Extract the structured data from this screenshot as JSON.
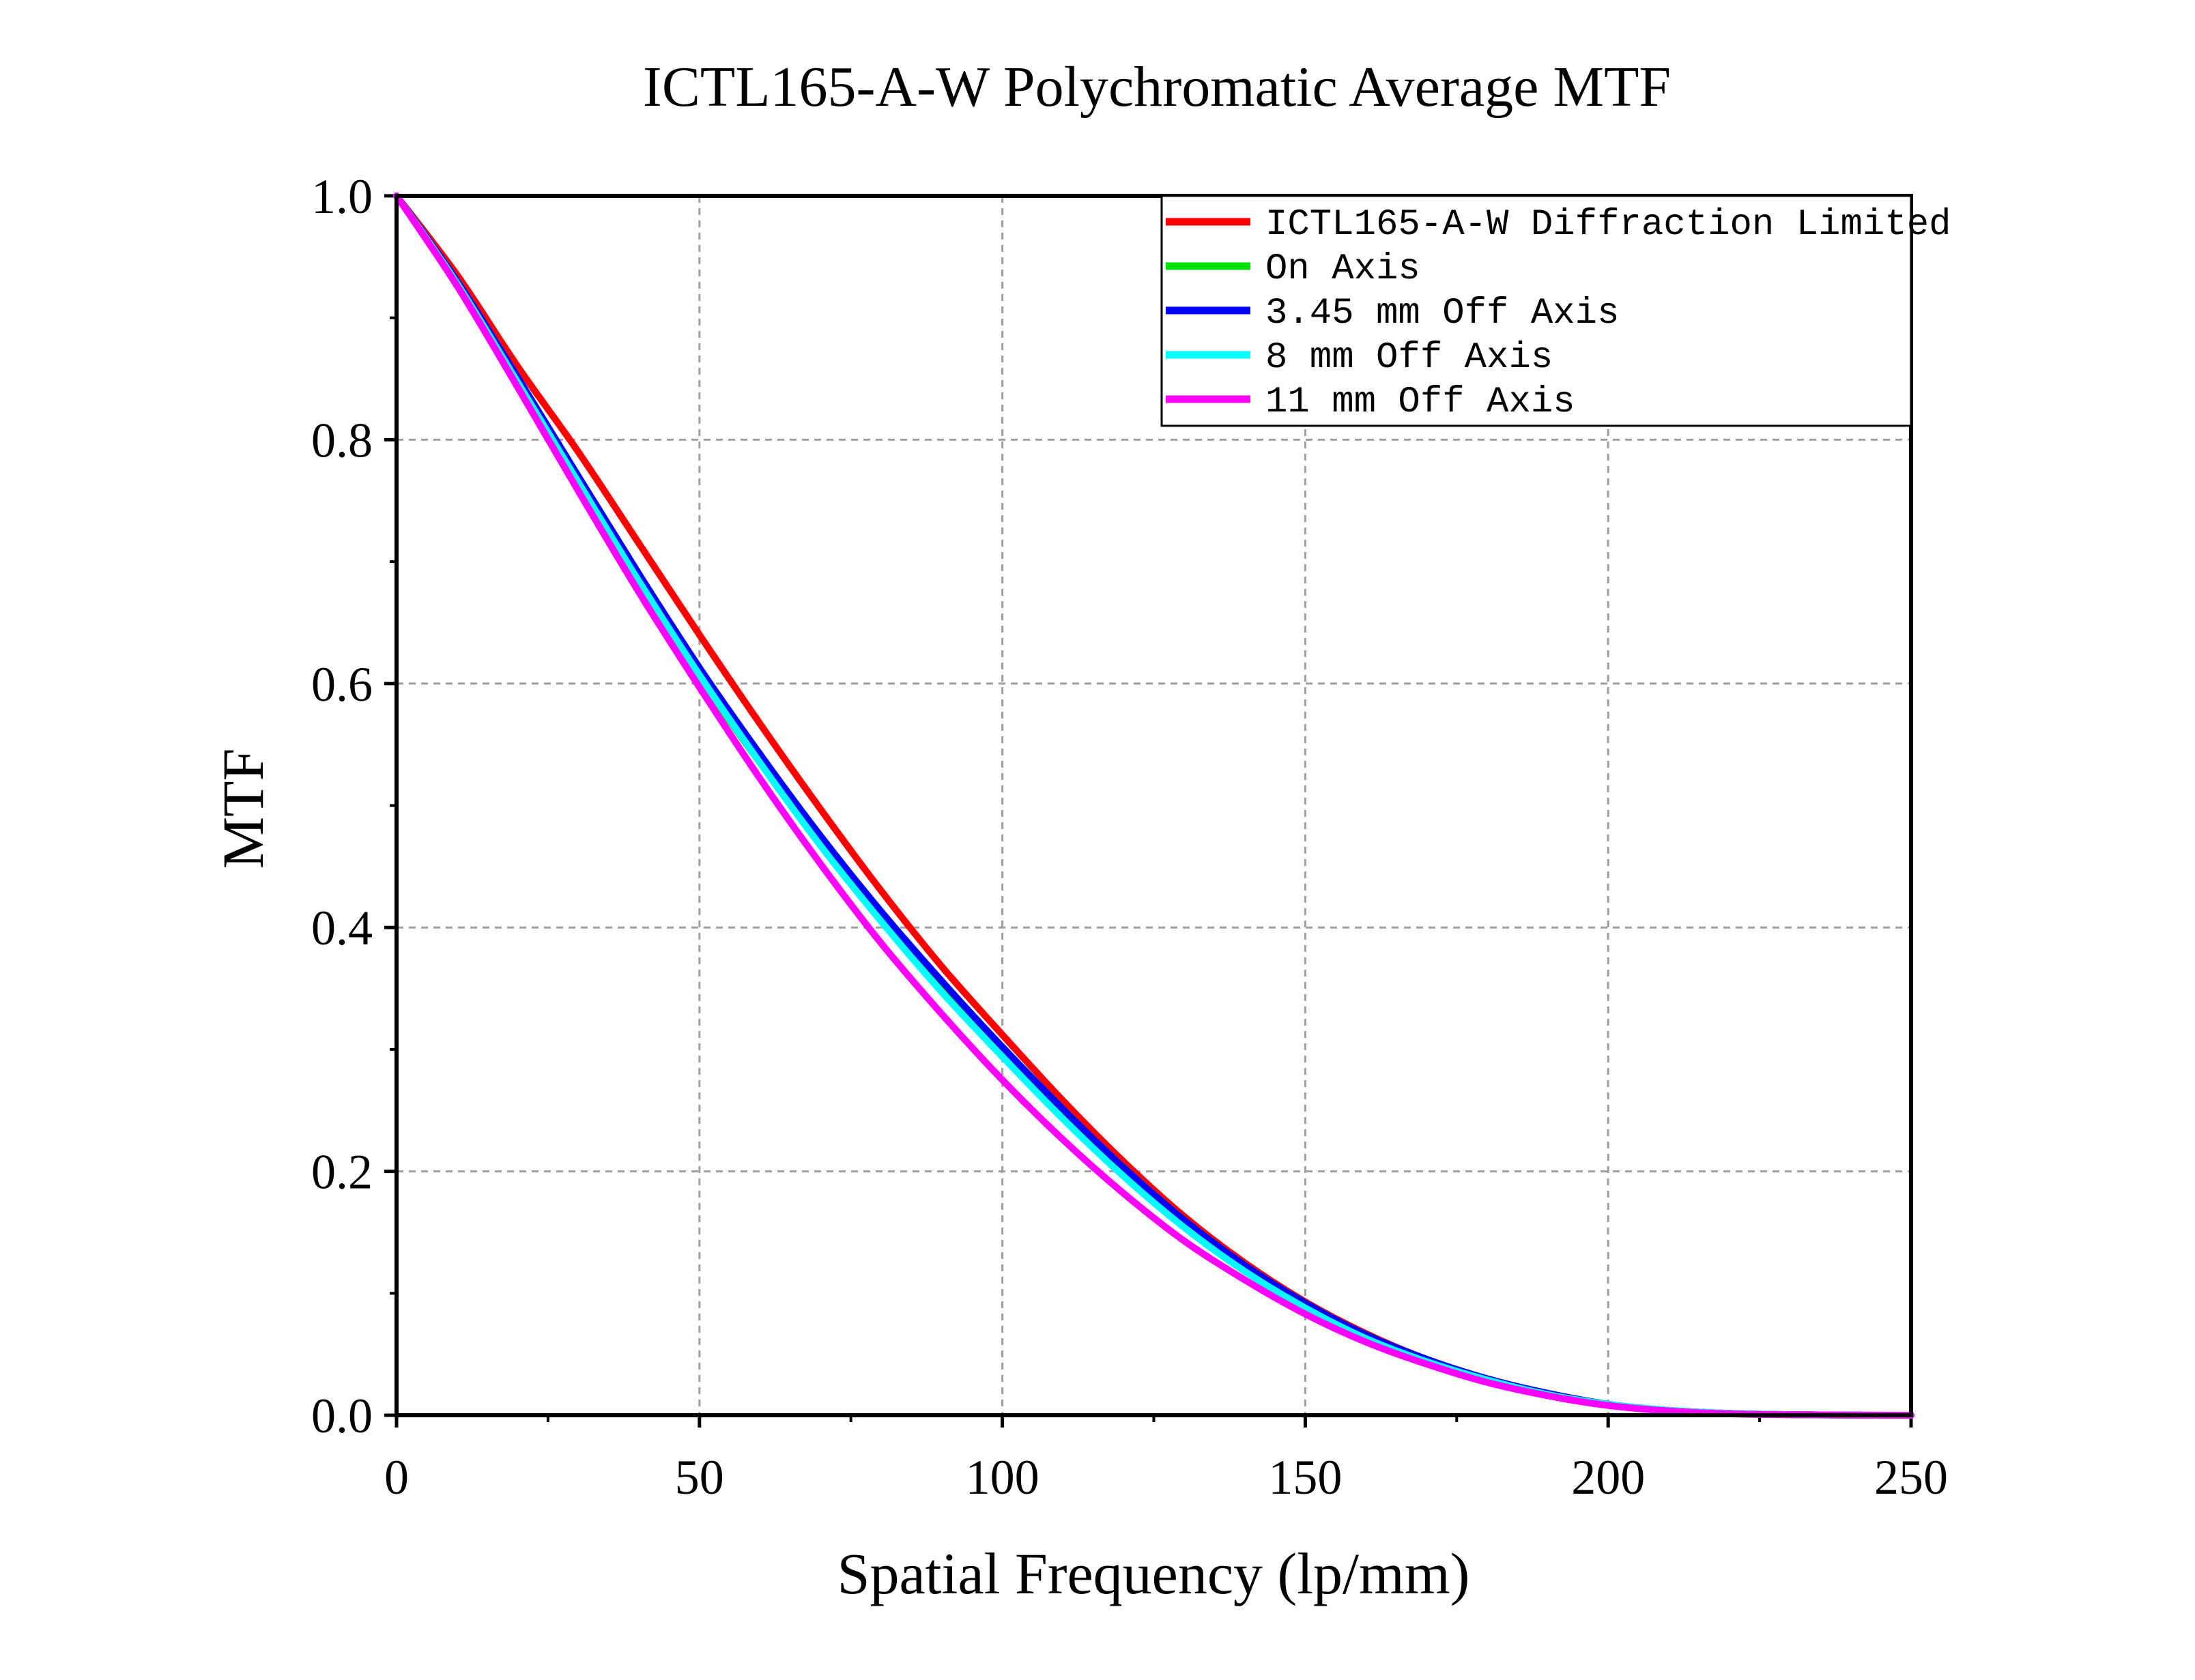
{
  "chart_data": {
    "type": "line",
    "title": "ICTL165-A-W Polychromatic Average MTF",
    "xlabel": "Spatial Frequency (lp/mm)",
    "ylabel": "MTF",
    "xlim": [
      0,
      250
    ],
    "ylim": [
      0,
      1.0
    ],
    "xticks": [
      0,
      50,
      100,
      150,
      200,
      250
    ],
    "yticks": [
      0.0,
      0.2,
      0.4,
      0.6,
      0.8,
      1.0
    ],
    "xtick_labels": [
      "0",
      "50",
      "100",
      "150",
      "200",
      "250"
    ],
    "ytick_labels": [
      "0.0",
      "0.2",
      "0.4",
      "0.6",
      "0.8",
      "1.0"
    ],
    "grid": true,
    "legend_position": "top-right",
    "x": [
      0,
      10,
      20,
      30,
      40,
      50,
      60,
      70,
      80,
      90,
      100,
      110,
      120,
      130,
      140,
      150,
      160,
      170,
      180,
      190,
      200,
      210,
      220,
      230,
      240,
      250
    ],
    "series": [
      {
        "name": "ICTL165-A-W Diffraction Limited",
        "color": "#ff0000",
        "values": [
          1.0,
          0.935,
          0.86,
          0.79,
          0.715,
          0.64,
          0.567,
          0.497,
          0.43,
          0.368,
          0.312,
          0.258,
          0.208,
          0.163,
          0.125,
          0.093,
          0.067,
          0.046,
          0.03,
          0.018,
          0.009,
          0.004,
          0.0015,
          0.0005,
          0.0001,
          0.0
        ]
      },
      {
        "name": "On Axis",
        "color": "#00e000",
        "values": [
          1.0,
          0.928,
          0.846,
          0.763,
          0.682,
          0.605,
          0.535,
          0.47,
          0.41,
          0.354,
          0.302,
          0.251,
          0.203,
          0.16,
          0.123,
          0.092,
          0.066,
          0.046,
          0.03,
          0.018,
          0.009,
          0.004,
          0.0015,
          0.0005,
          0.0001,
          0.0
        ]
      },
      {
        "name": "3.45 mm Off Axis",
        "color": "#0000ff",
        "values": [
          1.0,
          0.93,
          0.851,
          0.77,
          0.69,
          0.613,
          0.542,
          0.475,
          0.413,
          0.356,
          0.302,
          0.251,
          0.203,
          0.16,
          0.123,
          0.092,
          0.066,
          0.046,
          0.03,
          0.018,
          0.009,
          0.004,
          0.0015,
          0.0005,
          0.0001,
          0.0
        ]
      },
      {
        "name": "8 mm Off Axis",
        "color": "#00ffff",
        "values": [
          1.0,
          0.928,
          0.847,
          0.765,
          0.684,
          0.607,
          0.535,
          0.467,
          0.405,
          0.347,
          0.294,
          0.243,
          0.196,
          0.154,
          0.118,
          0.088,
          0.063,
          0.044,
          0.029,
          0.017,
          0.009,
          0.004,
          0.0015,
          0.0005,
          0.0001,
          0.0
        ]
      },
      {
        "name": "11 mm Off Axis",
        "color": "#ff00ff",
        "values": [
          1.0,
          0.926,
          0.843,
          0.758,
          0.675,
          0.597,
          0.522,
          0.452,
          0.387,
          0.329,
          0.275,
          0.226,
          0.182,
          0.143,
          0.111,
          0.083,
          0.06,
          0.042,
          0.027,
          0.016,
          0.008,
          0.0035,
          0.0012,
          0.0004,
          0.0001,
          0.0
        ]
      }
    ]
  }
}
